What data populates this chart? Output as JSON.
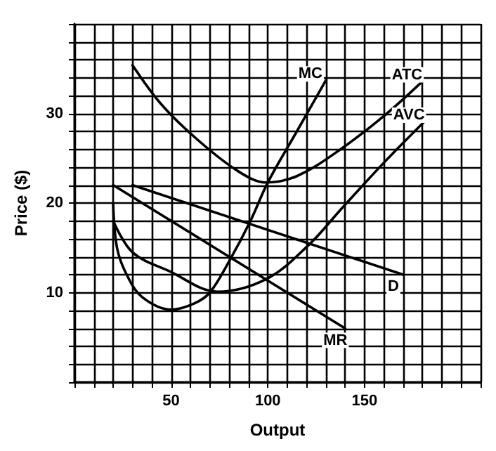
{
  "chart_data": {
    "type": "line",
    "xlabel": "Output",
    "ylabel": "Price ($)",
    "xlim": [
      0,
      210
    ],
    "ylim": [
      0,
      40
    ],
    "xticks": [
      {
        "value": 0,
        "label": null
      },
      {
        "value": 10,
        "label": null
      },
      {
        "value": 20,
        "label": null
      },
      {
        "value": 30,
        "label": null
      },
      {
        "value": 40,
        "label": null
      },
      50,
      {
        "value": 60,
        "label": null
      },
      {
        "value": 70,
        "label": null
      },
      {
        "value": 80,
        "label": null
      },
      {
        "value": 90,
        "label": null
      },
      100,
      {
        "value": 110,
        "label": null
      },
      {
        "value": 120,
        "label": null
      },
      {
        "value": 130,
        "label": null
      },
      {
        "value": 140,
        "label": null
      },
      150,
      {
        "value": 160,
        "label": null
      },
      {
        "value": 170,
        "label": null
      },
      {
        "value": 180,
        "label": null
      },
      {
        "value": 190,
        "label": null
      },
      {
        "value": 200,
        "label": null
      },
      {
        "value": 210,
        "label": null
      }
    ],
    "yticks": [
      {
        "value": 0,
        "label": null
      },
      {
        "value": 2,
        "label": null
      },
      {
        "value": 4,
        "label": null
      },
      {
        "value": 6,
        "label": null
      },
      {
        "value": 8,
        "label": null
      },
      10,
      {
        "value": 12,
        "label": null
      },
      {
        "value": 14,
        "label": null
      },
      {
        "value": 16,
        "label": null
      },
      {
        "value": 18,
        "label": null
      },
      20,
      {
        "value": 22,
        "label": null
      },
      {
        "value": 24,
        "label": null
      },
      {
        "value": 26,
        "label": null
      },
      {
        "value": 28,
        "label": null
      },
      30,
      {
        "value": 32,
        "label": null
      },
      {
        "value": 34,
        "label": null
      },
      {
        "value": 36,
        "label": null
      },
      {
        "value": 38,
        "label": null
      },
      {
        "value": 40,
        "label": null
      }
    ],
    "grid": true,
    "legend": false,
    "marker": "none",
    "line_style": "solid",
    "series": [
      {
        "name": "MC",
        "color": "#000000",
        "x": [
          20,
          22,
          27,
          35,
          50,
          62,
          70,
          80,
          91,
          100,
          115,
          130
        ],
        "values": [
          20,
          15,
          12,
          9.5,
          8.1,
          8.8,
          10,
          13.5,
          18,
          22.3,
          28,
          33.7
        ]
      },
      {
        "name": "ATC",
        "color": "#000000",
        "x": [
          30,
          45,
          64,
          85,
          99,
          115,
          137,
          161,
          180
        ],
        "values": [
          35.4,
          31,
          27,
          23.5,
          22.3,
          23,
          25.9,
          29.9,
          33.6
        ]
      },
      {
        "name": "AVC",
        "color": "#000000",
        "x": [
          20,
          30,
          49,
          74,
          100,
          122,
          137,
          160,
          181
        ],
        "values": [
          18,
          14.5,
          12.4,
          10.1,
          11.6,
          15.5,
          19.1,
          24.5,
          29.1
        ]
      },
      {
        "name": "D",
        "color": "#000000",
        "x": [
          30,
          170
        ],
        "values": [
          22,
          12
        ]
      },
      {
        "name": "MR",
        "color": "#000000",
        "x": [
          20,
          140
        ],
        "values": [
          22,
          6
        ]
      }
    ]
  }
}
